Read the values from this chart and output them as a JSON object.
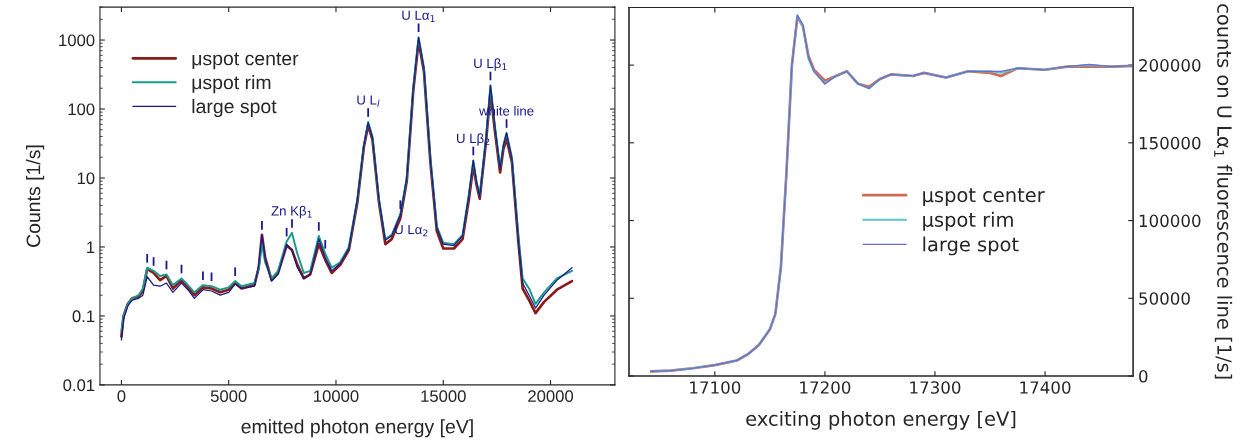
{
  "chart_data": [
    {
      "type": "line",
      "xlabel": "emitted photon energy [eV]",
      "ylabel": "Counts [1/s]",
      "log": "y",
      "xlim": [
        -1000,
        23000
      ],
      "ylim": [
        0.01,
        3000
      ],
      "xticks": [
        0,
        5000,
        10000,
        15000,
        20000
      ],
      "yticks": [
        {
          "value": 0.01,
          "label": "0.01"
        },
        {
          "value": 0.1,
          "label": "0.1"
        },
        1,
        10,
        100,
        1000
      ],
      "grid": false,
      "legend": "top left",
      "x": [
        0,
        100,
        300,
        500,
        800,
        1000,
        1200,
        1500,
        1800,
        2100,
        2400,
        2800,
        3100,
        3400,
        3800,
        4200,
        4600,
        5000,
        5300,
        5600,
        6200,
        6400,
        6550,
        6700,
        7000,
        7300,
        7700,
        7950,
        8200,
        8500,
        8800,
        9200,
        9500,
        9800,
        10200,
        10600,
        11000,
        11300,
        11500,
        11700,
        12000,
        12300,
        12600,
        13000,
        13300,
        13600,
        13850,
        14100,
        14400,
        14700,
        15000,
        15500,
        15900,
        16200,
        16400,
        16550,
        16700,
        17000,
        17200,
        17400,
        17650,
        17800,
        17950,
        18200,
        18500,
        18700,
        19000,
        19300,
        19700,
        20300,
        21000
      ],
      "series": [
        {
          "name": "μspot center",
          "color": "#8b1a1a",
          "values": [
            0.05,
            0.1,
            0.15,
            0.18,
            0.19,
            0.23,
            0.48,
            0.42,
            0.33,
            0.38,
            0.25,
            0.33,
            0.26,
            0.2,
            0.26,
            0.25,
            0.22,
            0.24,
            0.3,
            0.25,
            0.28,
            0.5,
            1.5,
            0.7,
            0.33,
            0.42,
            1.05,
            0.9,
            0.55,
            0.35,
            0.4,
            1.1,
            0.65,
            0.42,
            0.55,
            0.9,
            4.5,
            28,
            58,
            36,
            4.5,
            1.1,
            1.3,
            2.6,
            9,
            180,
            950,
            350,
            17,
            1.7,
            0.95,
            0.95,
            1.3,
            5,
            15,
            8,
            5,
            35,
            180,
            50,
            12,
            26,
            37,
            17,
            1.2,
            0.25,
            0.17,
            0.11,
            0.16,
            0.24,
            0.32
          ]
        },
        {
          "name": "μspot rim",
          "color": "#1a9a8a",
          "values": [
            0.06,
            0.1,
            0.15,
            0.18,
            0.2,
            0.25,
            0.5,
            0.45,
            0.38,
            0.4,
            0.28,
            0.35,
            0.28,
            0.22,
            0.28,
            0.27,
            0.24,
            0.26,
            0.32,
            0.27,
            0.3,
            0.5,
            1.1,
            0.6,
            0.35,
            0.45,
            1.2,
            1.6,
            0.8,
            0.42,
            0.45,
            1.45,
            0.8,
            0.5,
            0.6,
            1.0,
            5,
            30,
            65,
            40,
            5,
            1.3,
            1.5,
            3,
            10,
            200,
            1100,
            400,
            20,
            2,
            1.15,
            1.1,
            1.5,
            6,
            18,
            9,
            5.5,
            40,
            220,
            60,
            14,
            30,
            45,
            20,
            1.5,
            0.35,
            0.25,
            0.15,
            0.22,
            0.35,
            0.45
          ]
        },
        {
          "name": "large spot",
          "color": "#1a1a8c",
          "values": [
            0.045,
            0.09,
            0.14,
            0.17,
            0.18,
            0.2,
            0.37,
            0.28,
            0.27,
            0.3,
            0.22,
            0.3,
            0.24,
            0.18,
            0.24,
            0.23,
            0.2,
            0.22,
            0.29,
            0.25,
            0.27,
            0.55,
            1.5,
            0.65,
            0.32,
            0.4,
            1.1,
            0.9,
            0.5,
            0.35,
            0.4,
            1.3,
            0.7,
            0.45,
            0.58,
            0.95,
            5,
            30,
            63,
            39,
            5,
            1.25,
            1.45,
            2.9,
            10,
            195,
            1080,
            390,
            19,
            1.9,
            1.1,
            1.05,
            1.45,
            5.8,
            18,
            8.8,
            5.4,
            39,
            220,
            58,
            13.5,
            29,
            45,
            19,
            1.3,
            0.3,
            0.2,
            0.13,
            0.2,
            0.33,
            0.5
          ]
        }
      ],
      "annotations": [
        {
          "text": "I",
          "x": 1200,
          "y": 0.5
        },
        {
          "text": "I",
          "x": 1500,
          "y": 0.45
        },
        {
          "text": "I",
          "x": 2100,
          "y": 0.4
        },
        {
          "text": "I",
          "x": 2800,
          "y": 0.35
        },
        {
          "text": "I",
          "x": 3800,
          "y": 0.28
        },
        {
          "text": "I",
          "x": 4200,
          "y": 0.27
        },
        {
          "text": "I",
          "x": 5300,
          "y": 0.32
        },
        {
          "text": "I",
          "x": 6550,
          "y": 1.5
        },
        {
          "text": "I",
          "x": 7700,
          "y": 1.2
        },
        {
          "text": "I",
          "x": 7950,
          "y": 1.6
        },
        {
          "text": "Zn Kβ$_{1}$",
          "x": 7950,
          "y": 1.6
        },
        {
          "text": "I",
          "x": 9200,
          "y": 1.45
        },
        {
          "text": "I",
          "x": 9500,
          "y": 0.8
        },
        {
          "text": "I",
          "x": 11500,
          "y": 65
        },
        {
          "text": "U L$_{l}$",
          "x": 11500,
          "y": 65
        },
        {
          "text": "U Lα$_{2}$",
          "x": 13000,
          "y": 3
        },
        {
          "text": "I",
          "x": 13000,
          "y": 3
        },
        {
          "text": "I",
          "x": 13850,
          "y": 1100
        },
        {
          "text": "U Lα$_{1}$",
          "x": 13850,
          "y": 1100
        },
        {
          "text": "I",
          "x": 16400,
          "y": 18
        },
        {
          "text": "U Lβ$_{2}$",
          "x": 16400,
          "y": 18
        },
        {
          "text": "I",
          "x": 17200,
          "y": 220
        },
        {
          "text": "U Lβ$_{1}$",
          "x": 17200,
          "y": 220
        },
        {
          "text": "I",
          "x": 17950,
          "y": 45
        },
        {
          "text": "white line",
          "x": 17950,
          "y": 45
        }
      ]
    },
    {
      "type": "line",
      "xlabel": "exciting photon energy [eV]",
      "y2label": "counts on U Lα$_{1}$ fluorescence line [1/s]",
      "xlim": [
        17022,
        17480
      ],
      "y2lim": [
        0,
        237000
      ],
      "xticks": [
        17100,
        17200,
        17300,
        17400
      ],
      "y2ticks": [
        0,
        50000,
        100000,
        150000,
        200000
      ],
      "grid": false,
      "legend": "right",
      "x": [
        17042,
        17060,
        17080,
        17100,
        17120,
        17130,
        17140,
        17145,
        17150,
        17155,
        17160,
        17165,
        17170,
        17175,
        17180,
        17185,
        17190,
        17200,
        17210,
        17220,
        17230,
        17240,
        17250,
        17260,
        17280,
        17290,
        17310,
        17330,
        17350,
        17360,
        17375,
        17400,
        17420,
        17440,
        17460,
        17480
      ],
      "series": [
        {
          "name": "μspot center",
          "color": "#cd6a5a",
          "axis": "y2",
          "values": [
            3000,
            3500,
            5000,
            7000,
            10000,
            14000,
            20000,
            25000,
            30000,
            40000,
            70000,
            130000,
            200000,
            231000,
            225000,
            206000,
            197000,
            190000,
            193000,
            196000,
            188000,
            186000,
            191000,
            194000,
            193000,
            195000,
            192000,
            196000,
            195000,
            193000,
            198000,
            197000,
            199000,
            199000,
            199000,
            199500
          ]
        },
        {
          "name": "μspot rim",
          "color": "#5fc4c4",
          "axis": "y2",
          "values": [
            3000,
            3500,
            5000,
            7000,
            10000,
            14000,
            20000,
            25000,
            30000,
            40000,
            70000,
            130000,
            200000,
            232000,
            225000,
            204000,
            196000,
            188000,
            193000,
            196000,
            188000,
            185000,
            191000,
            194000,
            193000,
            195000,
            192000,
            196000,
            196000,
            195000,
            198000,
            197000,
            199000,
            200000,
            199000,
            199500
          ]
        },
        {
          "name": "large spot",
          "color": "#6a6ad0",
          "axis": "y2",
          "values": [
            3000,
            3500,
            5000,
            7000,
            10000,
            14000,
            20000,
            25000,
            30000,
            40000,
            70000,
            130000,
            200000,
            232000,
            226000,
            205000,
            196000,
            188000,
            193000,
            196000,
            188000,
            185000,
            191000,
            194000,
            193000,
            195000,
            192000,
            196000,
            196000,
            196000,
            198000,
            197000,
            199000,
            200500,
            199000,
            199500
          ]
        }
      ]
    }
  ]
}
